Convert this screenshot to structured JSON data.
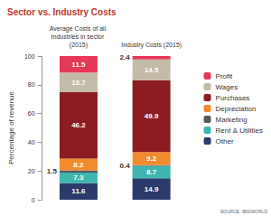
{
  "chart_data": {
    "type": "bar",
    "title": "Sector vs. Industry Costs",
    "y_label": "Percentage of revenue",
    "annotations": [
      "SOURCE: IBISWORLD"
    ],
    "categories": [
      "Average Costs of all Industries in sector (2015)",
      "Industry Costs (2015)"
    ],
    "series": [
      {
        "name": "Other",
        "color": "#2b3a6b",
        "values": [
          11.6,
          14.9
        ]
      },
      {
        "name": "Rent & Utilities",
        "color": "#3cb6ae",
        "values": [
          7.3,
          8.7
        ]
      },
      {
        "name": "Marketing",
        "color": "#58595b",
        "values": [
          1.5,
          0.4
        ]
      },
      {
        "name": "Depreciation",
        "color": "#f28a2e",
        "values": [
          8.2,
          9.2
        ]
      },
      {
        "name": "Purchases",
        "color": "#8c1c22",
        "values": [
          46.2,
          49.9
        ]
      },
      {
        "name": "Wages",
        "color": "#c3baa8",
        "values": [
          13.7,
          14.5
        ]
      },
      {
        "name": "Profit",
        "color": "#e8385a",
        "values": [
          11.5,
          2.4
        ]
      }
    ],
    "ylim": [
      0,
      100
    ],
    "yticks": [
      0,
      20,
      40,
      60,
      80,
      100
    ],
    "stacked": true,
    "data_labels": true,
    "legend": "right",
    "grid": false
  }
}
